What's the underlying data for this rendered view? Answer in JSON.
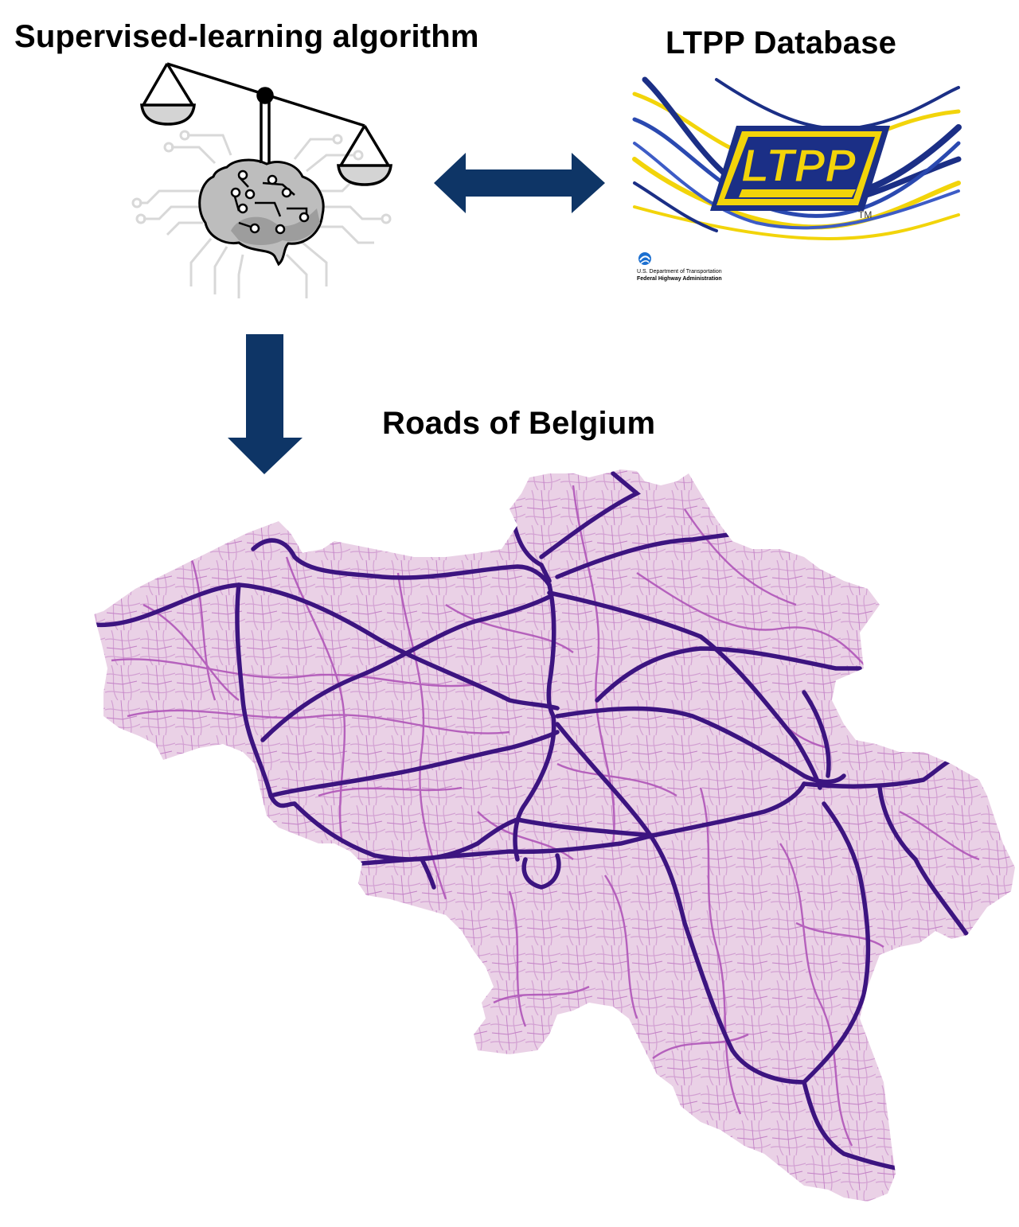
{
  "titles": {
    "algorithm": "Supervised-learning algorithm",
    "database": "LTPP Database",
    "roads": "Roads of Belgium"
  },
  "ltpp_logo": {
    "text": "LTPP",
    "tm": "TM",
    "dept": "U.S. Department of Transportation",
    "agency": "Federal Highway Administration"
  },
  "icons": [
    "balance-scale-icon",
    "brain-circuit-icon",
    "double-arrow-icon",
    "down-arrow-icon"
  ],
  "colors": {
    "arrow": "#0e3566",
    "map_fill": "#ead1e6",
    "road_minor": "#b055b8",
    "road_major": "#3c1480",
    "ltpp_yellow": "#f2d40a",
    "ltpp_blue": "#1b2f86"
  }
}
